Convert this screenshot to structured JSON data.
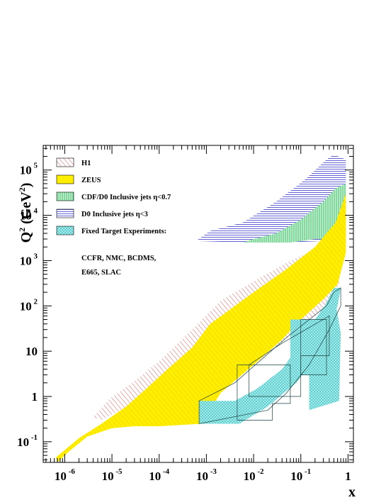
{
  "chart_data": {
    "type": "area",
    "title": "",
    "xlabel": "x",
    "ylabel_base": "Q",
    "ylabel_sup": "2",
    "ylabel_open": " (GeV",
    "ylabel_close": ")",
    "x_scale": "log",
    "y_scale": "log",
    "xlim": [
      3.5e-07,
      1.3
    ],
    "ylim": [
      0.035,
      350000.0
    ],
    "grid": false,
    "legend_position": "top-left",
    "x_ticks": [
      {
        "base": "10",
        "exp": "-6",
        "value": 1e-06
      },
      {
        "base": "10",
        "exp": "-5",
        "value": 1e-05
      },
      {
        "base": "10",
        "exp": "-4",
        "value": 0.0001
      },
      {
        "base": "10",
        "exp": "-3",
        "value": 0.001
      },
      {
        "base": "10",
        "exp": "-2",
        "value": 0.01
      },
      {
        "base": "10",
        "exp": "-1",
        "value": 0.1
      },
      {
        "base": "1",
        "exp": "",
        "value": 1
      }
    ],
    "y_ticks": [
      {
        "base": "10",
        "exp": "-1",
        "value": 0.1
      },
      {
        "base": "1",
        "exp": "",
        "value": 1
      },
      {
        "base": "10",
        "exp": "",
        "value": 10
      },
      {
        "base": "10",
        "exp": "2",
        "value": 100
      },
      {
        "base": "10",
        "exp": "3",
        "value": 1000
      },
      {
        "base": "10",
        "exp": "4",
        "value": 10000
      },
      {
        "base": "10",
        "exp": "5",
        "value": 100000
      }
    ],
    "series": [
      {
        "name": "H1",
        "color": "#e07070",
        "pattern": "diag-red",
        "regions": [
          [
            [
              4e-06,
              0.35
            ],
            [
              9e-06,
              0.9
            ],
            [
              3e-05,
              2.2
            ],
            [
              0.0001,
              6
            ],
            [
              0.0005,
              30
            ],
            [
              0.002,
              130
            ],
            [
              0.01,
              350
            ],
            [
              0.05,
              900
            ],
            [
              0.2,
              1800
            ],
            [
              0.6,
              3500
            ],
            [
              0.7,
              1200
            ],
            [
              0.65,
              300
            ],
            [
              0.4,
              130
            ],
            [
              0.2,
              60
            ],
            [
              0.08,
              30
            ],
            [
              0.03,
              12
            ],
            [
              0.01,
              5
            ],
            [
              0.003,
              2
            ],
            [
              0.001,
              1.2
            ],
            [
              0.0002,
              1.2
            ],
            [
              5e-05,
              0.9
            ],
            [
              1.5e-05,
              0.5
            ],
            [
              6e-06,
              0.3
            ]
          ]
        ]
      },
      {
        "name": "ZEUS",
        "color": "#ffee00",
        "pattern": "solid-yellow",
        "regions": [
          [
            [
              6.5e-07,
              0.045
            ],
            [
              2e-06,
              0.12
            ],
            [
              6e-06,
              0.25
            ],
            [
              2e-05,
              0.6
            ],
            [
              5e-05,
              1.4
            ],
            [
              0.00015,
              4
            ],
            [
              0.0005,
              12
            ],
            [
              0.0012,
              40
            ],
            [
              0.003,
              80
            ],
            [
              0.01,
              200
            ],
            [
              0.05,
              650
            ],
            [
              0.2,
              2000
            ],
            [
              0.55,
              7000
            ],
            [
              0.9,
              30000
            ],
            [
              0.9,
              1500
            ],
            [
              0.6,
              300
            ],
            [
              0.3,
              140
            ],
            [
              0.1,
              50
            ],
            [
              0.04,
              18
            ],
            [
              0.01,
              5
            ],
            [
              0.002,
              1.2
            ],
            [
              0.0008,
              0.25
            ],
            [
              0.0001,
              0.22
            ],
            [
              3e-05,
              0.22
            ],
            [
              1e-05,
              0.2
            ],
            [
              3e-06,
              0.13
            ],
            [
              1.2e-06,
              0.06
            ],
            [
              7e-07,
              0.035
            ]
          ]
        ]
      },
      {
        "name": "CDF/D0  Inclusive jets η<0.7",
        "color": "#40c080",
        "pattern": "vert-green",
        "regions": [
          [
            [
              0.006,
              2500
            ],
            [
              0.02,
              2500
            ],
            [
              0.06,
              2500
            ],
            [
              0.2,
              3000
            ],
            [
              0.6,
              3000
            ],
            [
              0.9,
              3000
            ],
            [
              0.9,
              50000
            ],
            [
              0.55,
              40000
            ],
            [
              0.3,
              20000
            ],
            [
              0.1,
              8000
            ],
            [
              0.03,
              4000
            ],
            [
              0.01,
              3000
            ]
          ]
        ]
      },
      {
        "name": "D0  Inclusive jets η<3",
        "color": "#5050d0",
        "pattern": "horiz-blue",
        "regions": [
          [
            [
              0.0006,
              2700
            ],
            [
              0.006,
              2500
            ],
            [
              0.05,
              2500
            ],
            [
              0.3,
              2700
            ],
            [
              0.9,
              3000
            ],
            [
              0.9,
              170000
            ],
            [
              0.5,
              220000
            ],
            [
              0.35,
              170000
            ],
            [
              0.12,
              60000
            ],
            [
              0.03,
              20000
            ],
            [
              0.006,
              7000
            ],
            [
              0.0012,
              4500
            ]
          ]
        ]
      },
      {
        "name": "Fixed Target Experiments:",
        "color": "#40c8c8",
        "pattern": "cross-cyan",
        "regions": [
          [
            [
              0.0007,
              0.25
            ],
            [
              0.005,
              0.25
            ],
            [
              0.02,
              0.6
            ],
            [
              0.08,
              2
            ],
            [
              0.25,
              10
            ],
            [
              0.6,
              100
            ],
            [
              0.7,
              250
            ],
            [
              0.5,
              250
            ],
            [
              0.25,
              60
            ],
            [
              0.1,
              15
            ],
            [
              0.04,
              4
            ],
            [
              0.012,
              1.5
            ],
            [
              0.004,
              0.8
            ],
            [
              0.0007,
              0.8
            ]
          ],
          [
            [
              0.06,
              3
            ],
            [
              0.3,
              3
            ],
            [
              0.3,
              50
            ],
            [
              0.06,
              50
            ]
          ],
          [
            [
              0.15,
              0.5
            ],
            [
              0.65,
              0.8
            ],
            [
              0.7,
              25
            ],
            [
              0.5,
              200
            ],
            [
              0.2,
              50
            ],
            [
              0.15,
              3
            ]
          ]
        ]
      }
    ],
    "legend_extra": [
      "CCFR, NMC, BCDMS,",
      "E665, SLAC"
    ],
    "fixed_target_boxes": [
      [
        [
          0.0045,
          0.3
        ],
        [
          0.025,
          0.3
        ],
        [
          0.025,
          0.7
        ],
        [
          0.06,
          0.7
        ],
        [
          0.06,
          5
        ],
        [
          0.0045,
          5
        ]
      ],
      [
        [
          0.008,
          1
        ],
        [
          0.1,
          1
        ],
        [
          0.1,
          8
        ],
        [
          0.4,
          8
        ],
        [
          0.4,
          60
        ],
        [
          0.04,
          15
        ],
        [
          0.008,
          5
        ]
      ],
      [
        [
          0.1,
          3
        ],
        [
          0.35,
          3
        ],
        [
          0.35,
          50
        ],
        [
          0.1,
          50
        ]
      ],
      [
        [
          0.0007,
          0.25
        ],
        [
          0.0007,
          0.8
        ],
        [
          0.004,
          2
        ],
        [
          0.05,
          20
        ],
        [
          0.35,
          100
        ],
        [
          0.5,
          200
        ],
        [
          0.7,
          250
        ],
        [
          0.7,
          100
        ],
        [
          0.4,
          30
        ],
        [
          0.15,
          5
        ],
        [
          0.05,
          1.2
        ],
        [
          0.02,
          0.5
        ]
      ]
    ]
  }
}
